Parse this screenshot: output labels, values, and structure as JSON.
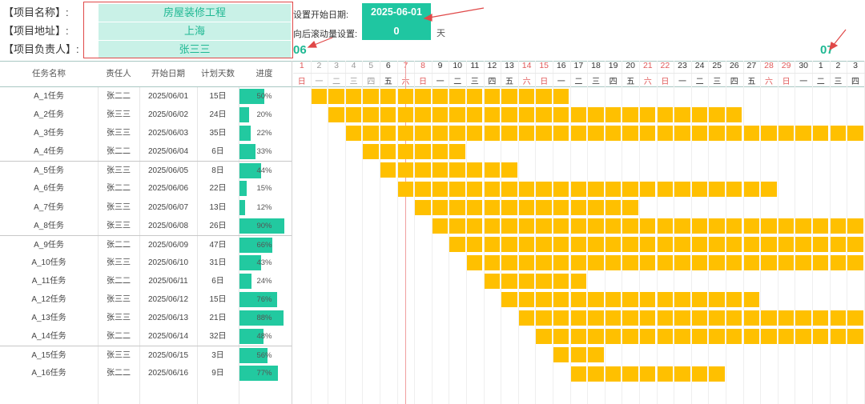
{
  "project": {
    "name_label": "【项目名称】:",
    "name_value": "房屋装修工程",
    "address_label": "【项目地址】:",
    "address_value": "上海",
    "owner_label": "【项目负责人】:",
    "owner_value": "张三三"
  },
  "settings": {
    "start_date_label": "设置开始日期:",
    "start_date_value": "2025-06-01",
    "scroll_label": "向后滚动量设置:",
    "scroll_value": "0",
    "scroll_unit": "天"
  },
  "months": {
    "first": "06",
    "second": "07"
  },
  "columns": {
    "name": "任务名称",
    "owner": "责任人",
    "start": "开始日期",
    "days": "计划天数",
    "progress": "进度"
  },
  "calendar": {
    "days": [
      "1",
      "2",
      "3",
      "4",
      "5",
      "6",
      "7",
      "8",
      "9",
      "10",
      "11",
      "12",
      "13",
      "14",
      "15",
      "16",
      "17",
      "18",
      "19",
      "20",
      "21",
      "22",
      "23",
      "24",
      "25",
      "26",
      "27",
      "28",
      "29",
      "30",
      "1",
      "2",
      "3"
    ],
    "weekdays": [
      "日",
      "一",
      "二",
      "三",
      "四",
      "五",
      "六",
      "日",
      "一",
      "二",
      "三",
      "四",
      "五",
      "六",
      "日",
      "一",
      "二",
      "三",
      "四",
      "五",
      "六",
      "日",
      "一",
      "二",
      "三",
      "四",
      "五",
      "六",
      "日",
      "一",
      "二",
      "三",
      "四"
    ],
    "today_index": 6
  },
  "tasks": [
    {
      "name": "A_1任务",
      "owner": "张二二",
      "start": "2025/06/01",
      "days": "15日",
      "progress": "50%",
      "pct": 50,
      "offset": 1,
      "len": 15
    },
    {
      "name": "A_2任务",
      "owner": "张三三",
      "start": "2025/06/02",
      "days": "24日",
      "progress": "20%",
      "pct": 20,
      "offset": 2,
      "len": 24
    },
    {
      "name": "A_3任务",
      "owner": "张三三",
      "start": "2025/06/03",
      "days": "35日",
      "progress": "22%",
      "pct": 22,
      "offset": 3,
      "len": 35
    },
    {
      "name": "A_4任务",
      "owner": "张二二",
      "start": "2025/06/04",
      "days": "6日",
      "progress": "33%",
      "pct": 33,
      "offset": 4,
      "len": 6
    },
    {
      "name": "A_5任务",
      "owner": "张三三",
      "start": "2025/06/05",
      "days": "8日",
      "progress": "44%",
      "pct": 44,
      "offset": 5,
      "len": 8
    },
    {
      "name": "A_6任务",
      "owner": "张二二",
      "start": "2025/06/06",
      "days": "22日",
      "progress": "15%",
      "pct": 15,
      "offset": 6,
      "len": 22
    },
    {
      "name": "A_7任务",
      "owner": "张三三",
      "start": "2025/06/07",
      "days": "13日",
      "progress": "12%",
      "pct": 12,
      "offset": 7,
      "len": 13
    },
    {
      "name": "A_8任务",
      "owner": "张三三",
      "start": "2025/06/08",
      "days": "26日",
      "progress": "90%",
      "pct": 90,
      "offset": 8,
      "len": 26
    },
    {
      "name": "A_9任务",
      "owner": "张二二",
      "start": "2025/06/09",
      "days": "47日",
      "progress": "66%",
      "pct": 66,
      "offset": 9,
      "len": 47
    },
    {
      "name": "A_10任务",
      "owner": "张三三",
      "start": "2025/06/10",
      "days": "31日",
      "progress": "43%",
      "pct": 43,
      "offset": 10,
      "len": 31
    },
    {
      "name": "A_11任务",
      "owner": "张二二",
      "start": "2025/06/11",
      "days": "6日",
      "progress": "24%",
      "pct": 24,
      "offset": 11,
      "len": 6
    },
    {
      "name": "A_12任务",
      "owner": "张三三",
      "start": "2025/06/12",
      "days": "15日",
      "progress": "76%",
      "pct": 76,
      "offset": 12,
      "len": 15
    },
    {
      "name": "A_13任务",
      "owner": "张三三",
      "start": "2025/06/13",
      "days": "21日",
      "progress": "88%",
      "pct": 88,
      "offset": 13,
      "len": 21
    },
    {
      "name": "A_14任务",
      "owner": "张二二",
      "start": "2025/06/14",
      "days": "32日",
      "progress": "48%",
      "pct": 48,
      "offset": 14,
      "len": 32
    },
    {
      "name": "A_15任务",
      "owner": "张三三",
      "start": "2025/06/15",
      "days": "3日",
      "progress": "56%",
      "pct": 56,
      "offset": 15,
      "len": 3
    },
    {
      "name": "A_16任务",
      "owner": "张二二",
      "start": "2025/06/16",
      "days": "9日",
      "progress": "77%",
      "pct": 77,
      "offset": 16,
      "len": 9
    }
  ],
  "colors": {
    "accent": "#1fc6a1",
    "bar": "#ffc000",
    "weekend": "#e05a5a",
    "highlight_box": "#e04848"
  }
}
